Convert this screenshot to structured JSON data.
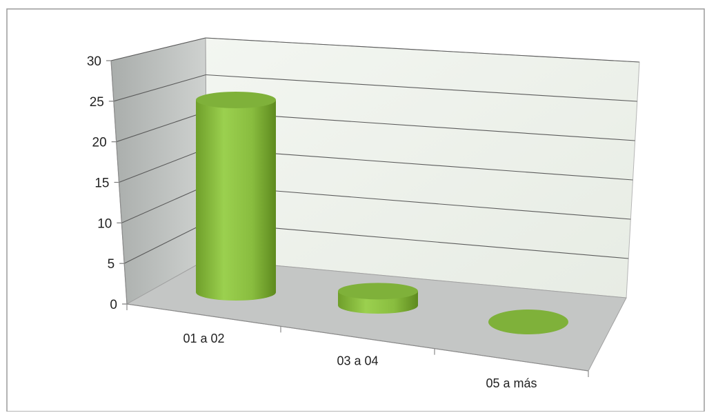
{
  "chart_data": {
    "type": "bar",
    "style": "3d-cylinder",
    "categories": [
      "01 a 02",
      "03 a 04",
      "05 a más"
    ],
    "series": [
      {
        "values": [
          27,
          2,
          0
        ]
      }
    ],
    "ylim": [
      0,
      30
    ],
    "yticks": [
      "0",
      "5",
      "10",
      "15",
      "20",
      "25",
      "30"
    ],
    "title": "",
    "xlabel": "",
    "ylabel": "",
    "grid": true,
    "legend": "none",
    "colors": {
      "bar": "#8fc043",
      "bar_dark": "#5e8a1e",
      "bar_top": "#7fb13a",
      "back_wall": "#eef2ec",
      "side_wall": "#b9bdbb",
      "floor": "#c4c6c5",
      "frame": "#9a9a9a"
    }
  }
}
